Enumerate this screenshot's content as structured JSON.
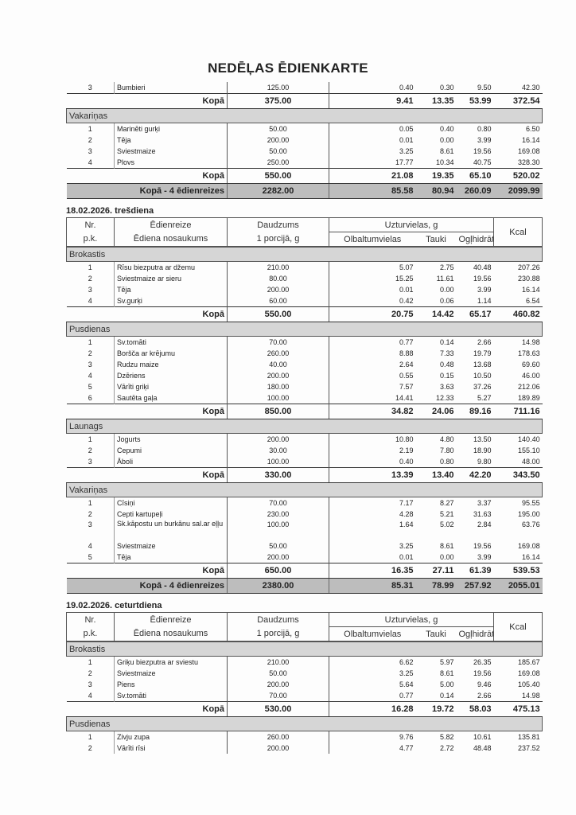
{
  "title": "NEDĒĻAS ĒDIENKARTE",
  "header_labels": {
    "nr": "Nr.",
    "pk": "p.k.",
    "edienreize": "Ēdienreize",
    "nosaukums": "Ēdiena nosaukums",
    "daudzums": "Daudzums",
    "porcija": "1 porcijā, g",
    "uzturvielas": "Uzturvielas, g",
    "olbaltumvielas": "Olbaltumvielas",
    "tauki": "Tauki",
    "oglhidrati": "Ogļhidrāti",
    "kcal": "Kcal"
  },
  "kopa_label": "Kopā",
  "blocks": [
    {
      "type": "items",
      "rows": [
        [
          "3",
          "Bumbieri",
          "125.00",
          "0.40",
          "0.30",
          "9.50",
          "42.30"
        ]
      ]
    },
    {
      "type": "kopa",
      "values": [
        "375.00",
        "9.41",
        "13.35",
        "53.99",
        "372.54"
      ]
    },
    {
      "type": "section",
      "label": "Vakariņas"
    },
    {
      "type": "items",
      "rows": [
        [
          "1",
          "Marinēti gurķi",
          "50.00",
          "0.05",
          "0.40",
          "0.80",
          "6.50"
        ],
        [
          "2",
          "Tēja",
          "200.00",
          "0.01",
          "0.00",
          "3.99",
          "16.14"
        ],
        [
          "3",
          "Sviestmaize",
          "50.00",
          "3.25",
          "8.61",
          "19.56",
          "169.08"
        ],
        [
          "4",
          "Plovs",
          "250.00",
          "17.77",
          "10.34",
          "40.75",
          "328.30"
        ]
      ]
    },
    {
      "type": "kopa",
      "values": [
        "550.00",
        "21.08",
        "19.35",
        "65.10",
        "520.02"
      ]
    },
    {
      "type": "total",
      "label": "Kopā -  4 ēdienreizes",
      "values": [
        "2282.00",
        "85.58",
        "80.94",
        "260.09",
        "2099.99"
      ]
    },
    {
      "type": "date",
      "label": "18.02.2026.  trešdiena"
    },
    {
      "type": "header"
    },
    {
      "type": "section",
      "label": "Brokastis"
    },
    {
      "type": "items",
      "rows": [
        [
          "1",
          "Rīsu biezputra ar džemu",
          "210.00",
          "5.07",
          "2.75",
          "40.48",
          "207.26"
        ],
        [
          "2",
          "Sviestmaize ar sieru",
          "80.00",
          "15.25",
          "11.61",
          "19.56",
          "230.88"
        ],
        [
          "3",
          "Tēja",
          "200.00",
          "0.01",
          "0.00",
          "3.99",
          "16.14"
        ],
        [
          "4",
          "Sv.gurķi",
          "60.00",
          "0.42",
          "0.06",
          "1.14",
          "6.54"
        ]
      ]
    },
    {
      "type": "kopa",
      "values": [
        "550.00",
        "20.75",
        "14.42",
        "65.17",
        "460.82"
      ]
    },
    {
      "type": "section",
      "label": "Pusdienas"
    },
    {
      "type": "items",
      "rows": [
        [
          "1",
          "Sv.tomāti",
          "70.00",
          "0.77",
          "0.14",
          "2.66",
          "14.98"
        ],
        [
          "2",
          "Boršča ar krējumu",
          "260.00",
          "8.88",
          "7.33",
          "19.79",
          "178.63"
        ],
        [
          "3",
          "Rudzu maize",
          "40.00",
          "2.64",
          "0.48",
          "13.68",
          "69.60"
        ],
        [
          "4",
          "Dzēriens",
          "200.00",
          "0.55",
          "0.15",
          "10.50",
          "46.00"
        ],
        [
          "5",
          "Vārīti griķi",
          "180.00",
          "7.57",
          "3.63",
          "37.26",
          "212.06"
        ],
        [
          "6",
          "Sautēta gaļa",
          "100.00",
          "14.41",
          "12.33",
          "5.27",
          "189.89"
        ]
      ]
    },
    {
      "type": "kopa",
      "values": [
        "850.00",
        "34.82",
        "24.06",
        "89.16",
        "711.16"
      ]
    },
    {
      "type": "section",
      "label": "Launags"
    },
    {
      "type": "items",
      "rows": [
        [
          "1",
          "Jogurts",
          "200.00",
          "10.80",
          "4.80",
          "13.50",
          "140.40"
        ],
        [
          "2",
          "Cepumi",
          "30.00",
          "2.19",
          "7.80",
          "18.90",
          "155.10"
        ],
        [
          "3",
          "Āboli",
          "100.00",
          "0.40",
          "0.80",
          "9.80",
          "48.00"
        ]
      ]
    },
    {
      "type": "kopa",
      "values": [
        "330.00",
        "13.39",
        "13.40",
        "42.20",
        "343.50"
      ]
    },
    {
      "type": "section",
      "label": "Vakariņas"
    },
    {
      "type": "items",
      "rows": [
        [
          "1",
          "Cīsiņi",
          "70.00",
          "7.17",
          "8.27",
          "3.37",
          "95.55"
        ],
        [
          "2",
          "Cepti kartupeļi",
          "230.00",
          "4.28",
          "5.21",
          "31.63",
          "195.00"
        ],
        [
          "3",
          "Sk.kāpostu un burkānu sal.ar eļļu",
          "100.00",
          "1.64",
          "5.02",
          "2.84",
          "63.76"
        ],
        [
          "4",
          "Sviestmaize",
          "50.00",
          "3.25",
          "8.61",
          "19.56",
          "169.08"
        ],
        [
          "5",
          "Tēja",
          "200.00",
          "0.01",
          "0.00",
          "3.99",
          "16.14"
        ]
      ]
    },
    {
      "type": "kopa",
      "values": [
        "650.00",
        "16.35",
        "27.11",
        "61.39",
        "539.53"
      ]
    },
    {
      "type": "total",
      "label": "Kopā -  4 ēdienreizes",
      "values": [
        "2380.00",
        "85.31",
        "78.99",
        "257.92",
        "2055.01"
      ]
    },
    {
      "type": "date",
      "label": "19.02.2026.  ceturtdiena"
    },
    {
      "type": "header"
    },
    {
      "type": "section",
      "label": "Brokastis"
    },
    {
      "type": "items",
      "rows": [
        [
          "1",
          "Griķu biezputra ar sviestu",
          "210.00",
          "6.62",
          "5.97",
          "26.35",
          "185.67"
        ],
        [
          "2",
          "Sviestmaize",
          "50.00",
          "3.25",
          "8.61",
          "19.56",
          "169.08"
        ],
        [
          "3",
          "Piens",
          "200.00",
          "5.64",
          "5.00",
          "9.46",
          "105.40"
        ],
        [
          "4",
          "Sv.tomāti",
          "70.00",
          "0.77",
          "0.14",
          "2.66",
          "14.98"
        ]
      ]
    },
    {
      "type": "kopa",
      "values": [
        "530.00",
        "16.28",
        "19.72",
        "58.03",
        "475.13"
      ]
    },
    {
      "type": "section",
      "label": "Pusdienas"
    },
    {
      "type": "items",
      "rows": [
        [
          "1",
          "Zivju zupa",
          "260.00",
          "9.76",
          "5.82",
          "10.61",
          "135.81"
        ],
        [
          "2",
          "Vārīti rīsi",
          "200.00",
          "4.77",
          "2.72",
          "48.48",
          "237.52"
        ]
      ]
    }
  ]
}
